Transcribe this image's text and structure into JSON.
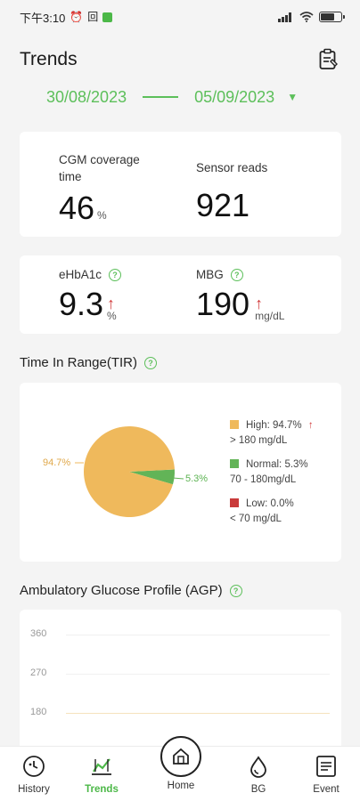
{
  "status_bar": {
    "time": "下午3:10",
    "glyph_1": "⏰",
    "glyph_2": "回"
  },
  "header": {
    "title": "Trends",
    "report_icon": "clipboard-icon"
  },
  "date_range": {
    "start": "30/08/2023",
    "end": "05/09/2023"
  },
  "metrics_top": {
    "cgm_label": "CGM coverage time",
    "cgm_value": "46",
    "cgm_unit": "%",
    "sensor_label": "Sensor reads",
    "sensor_value": "921"
  },
  "metrics_mid": {
    "ehba1c_label": "eHbA1c",
    "ehba1c_value": "9.3",
    "ehba1c_unit": "%",
    "mbg_label": "MBG",
    "mbg_value": "190",
    "mbg_unit": "mg/dL"
  },
  "tir": {
    "title": "Time In Range(TIR)",
    "label_high_pct": "94.7%",
    "label_normal_pct": "5.3%",
    "legend": [
      {
        "title": "High: 94.7%",
        "range": "> 180 mg/dL",
        "color": "#efb95c"
      },
      {
        "title": "Normal: 5.3%",
        "range": "70 - 180mg/dL",
        "color": "#62b457"
      },
      {
        "title": "Low: 0.0%",
        "range": "< 70 mg/dL",
        "color": "#c93a3a"
      }
    ]
  },
  "agp": {
    "title": "Ambulatory Glucose Profile (AGP)",
    "ticks": [
      "360",
      "270",
      "180"
    ]
  },
  "chart_data": {
    "type": "pie",
    "categories": [
      "High",
      "Normal",
      "Low"
    ],
    "values": [
      94.7,
      5.3,
      0.0
    ],
    "colors": [
      "#efb95c",
      "#62b457",
      "#c93a3a"
    ],
    "title": "Time In Range(TIR)"
  },
  "nav": {
    "history": "History",
    "trends": "Trends",
    "home": "Home",
    "bg": "BG",
    "event": "Event"
  }
}
